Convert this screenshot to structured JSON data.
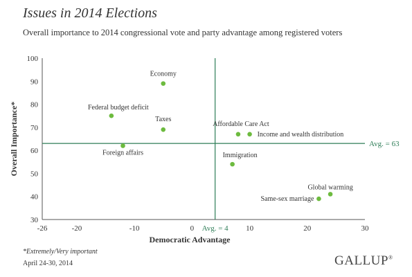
{
  "header": {
    "title": "Issues in 2014 Elections",
    "subtitle": "Overall importance to 2014 congressional vote and party advantage among registered voters"
  },
  "footer": {
    "footnote": "*Extremely/Very important",
    "date": "April 24-30, 2014",
    "brand": "GALLUP",
    "brand_mark": "®"
  },
  "colors": {
    "point": "#6dbb3f",
    "reference_line": "#2e7d57",
    "axis": "#555555"
  },
  "chart_data": {
    "type": "scatter",
    "xlabel": "Democratic Advantage",
    "ylabel": "Overall Importance*",
    "xlim": [
      -26,
      30
    ],
    "ylim": [
      30,
      100
    ],
    "x_ticks": [
      -26,
      -20,
      -10,
      0,
      10,
      20,
      30
    ],
    "y_ticks": [
      30,
      40,
      50,
      60,
      70,
      80,
      90,
      100
    ],
    "grid": false,
    "reference_lines": {
      "x": {
        "value": 4,
        "label": "Avg. = 4"
      },
      "y": {
        "value": 63,
        "label": "Avg. = 63"
      }
    },
    "points": [
      {
        "label": "Economy",
        "x": -5,
        "y": 89
      },
      {
        "label": "Federal budget deficit",
        "x": -14,
        "y": 75
      },
      {
        "label": "Taxes",
        "x": -5,
        "y": 69
      },
      {
        "label": "Foreign affairs",
        "x": -12,
        "y": 62
      },
      {
        "label": "Affordable Care Act",
        "x": 8,
        "y": 67
      },
      {
        "label": "Income and wealth distribution",
        "x": 10,
        "y": 67
      },
      {
        "label": "Immigration",
        "x": 7,
        "y": 54
      },
      {
        "label": "Global warming",
        "x": 24,
        "y": 41
      },
      {
        "label": "Same-sex marriage",
        "x": 22,
        "y": 39
      }
    ]
  }
}
